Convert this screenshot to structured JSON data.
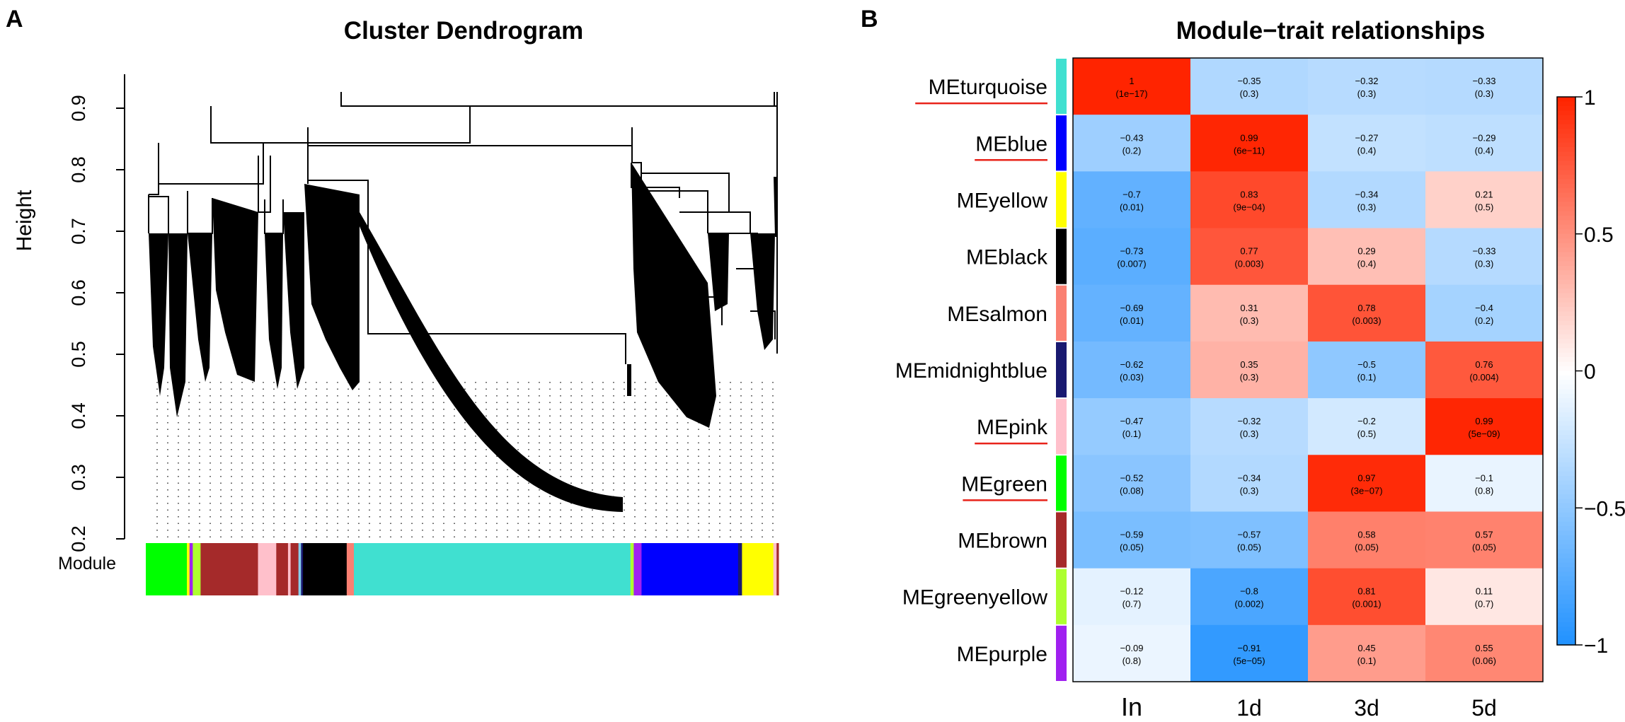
{
  "panel_a": {
    "letter": "A"
  },
  "panel_b": {
    "letter": "B"
  },
  "chart_data": [
    {
      "type": "dendrogram",
      "title": "Cluster Dendrogram",
      "ylabel": "Height",
      "ylim": [
        0.2,
        0.95
      ],
      "yticks": [
        0.2,
        0.3,
        0.4,
        0.5,
        0.6,
        0.7,
        0.8,
        0.9
      ],
      "ytick_labels": [
        "0.2",
        "0.3",
        "0.4",
        "0.5",
        "0.6",
        "0.7",
        "0.8",
        "0.9"
      ],
      "module_label": "Module",
      "module_colors": [
        {
          "color": "#00ff00",
          "fraction": 0.063
        },
        {
          "color": "#ffff00",
          "fraction": 0.004
        },
        {
          "color": "#a020f0",
          "fraction": 0.005
        },
        {
          "color": "#adff2f",
          "fraction": 0.012
        },
        {
          "color": "#a52a2a",
          "fraction": 0.088
        },
        {
          "color": "#ffc0cb",
          "fraction": 0.028
        },
        {
          "color": "#a52a2a",
          "fraction": 0.018
        },
        {
          "color": "#ffc0cb",
          "fraction": 0.004
        },
        {
          "color": "#a52a2a",
          "fraction": 0.012
        },
        {
          "color": "#87ceeb",
          "fraction": 0.004
        },
        {
          "color": "#191970",
          "fraction": 0.003
        },
        {
          "color": "#000000",
          "fraction": 0.067
        },
        {
          "color": "#fa8072",
          "fraction": 0.011
        },
        {
          "color": "#40e0d0",
          "fraction": 0.424
        },
        {
          "color": "#adff2f",
          "fraction": 0.005
        },
        {
          "color": "#a020f0",
          "fraction": 0.012
        },
        {
          "color": "#0000ff",
          "fraction": 0.148
        },
        {
          "color": "#191970",
          "fraction": 0.006
        },
        {
          "color": "#ffff00",
          "fraction": 0.048
        },
        {
          "color": "#ffc0cb",
          "fraction": 0.005
        },
        {
          "color": "#a52a2a",
          "fraction": 0.003
        }
      ]
    },
    {
      "type": "heatmap",
      "title": "Module−trait relationships",
      "rows": [
        "MEturquoise",
        "MEblue",
        "MEyellow",
        "MEblack",
        "MEsalmon",
        "MEmidnightblue",
        "MEpink",
        "MEgreen",
        "MEbrown",
        "MEgreenyellow",
        "MEpurple"
      ],
      "row_colors": [
        "#40e0d0",
        "#0000ff",
        "#ffff00",
        "#000000",
        "#fa8072",
        "#191970",
        "#ffc0cb",
        "#00ff00",
        "#a52a2a",
        "#adff2f",
        "#a020f0"
      ],
      "underlined_rows": [
        "MEturquoise",
        "MEblue",
        "MEpink",
        "MEgreen"
      ],
      "columns": [
        "In",
        "1d",
        "3d",
        "5d"
      ],
      "values": [
        [
          1,
          -0.35,
          -0.32,
          -0.33
        ],
        [
          -0.43,
          0.99,
          -0.27,
          -0.29
        ],
        [
          -0.7,
          0.83,
          -0.34,
          0.21
        ],
        [
          -0.73,
          0.77,
          0.29,
          -0.33
        ],
        [
          -0.69,
          0.31,
          0.78,
          -0.4
        ],
        [
          -0.62,
          0.35,
          -0.5,
          0.76
        ],
        [
          -0.47,
          -0.32,
          -0.2,
          0.99
        ],
        [
          -0.52,
          -0.34,
          0.97,
          -0.1
        ],
        [
          -0.59,
          -0.57,
          0.58,
          0.57
        ],
        [
          -0.12,
          -0.8,
          0.81,
          0.11
        ],
        [
          -0.09,
          -0.91,
          0.45,
          0.55
        ]
      ],
      "cell_labels": [
        [
          "1",
          "−0.35",
          "−0.32",
          "−0.33"
        ],
        [
          "−0.43",
          "0.99",
          "−0.27",
          "−0.29"
        ],
        [
          "−0.7",
          "0.83",
          "−0.34",
          "0.21"
        ],
        [
          "−0.73",
          "0.77",
          "0.29",
          "−0.33"
        ],
        [
          "−0.69",
          "0.31",
          "0.78",
          "−0.4"
        ],
        [
          "−0.62",
          "0.35",
          "−0.5",
          "0.76"
        ],
        [
          "−0.47",
          "−0.32",
          "−0.2",
          "0.99"
        ],
        [
          "−0.52",
          "−0.34",
          "0.97",
          "−0.1"
        ],
        [
          "−0.59",
          "−0.57",
          "0.58",
          "0.57"
        ],
        [
          "−0.12",
          "−0.8",
          "0.81",
          "0.11"
        ],
        [
          "−0.09",
          "−0.91",
          "0.45",
          "0.55"
        ]
      ],
      "pvalues": [
        [
          "(1e−17)",
          "(0.3)",
          "(0.3)",
          "(0.3)"
        ],
        [
          "(0.2)",
          "(6e−11)",
          "(0.4)",
          "(0.4)"
        ],
        [
          "(0.01)",
          "(9e−04)",
          "(0.3)",
          "(0.5)"
        ],
        [
          "(0.007)",
          "(0.003)",
          "(0.4)",
          "(0.3)"
        ],
        [
          "(0.01)",
          "(0.3)",
          "(0.003)",
          "(0.2)"
        ],
        [
          "(0.03)",
          "(0.3)",
          "(0.1)",
          "(0.004)"
        ],
        [
          "(0.1)",
          "(0.3)",
          "(0.5)",
          "(5e−09)"
        ],
        [
          "(0.08)",
          "(0.3)",
          "(3e−07)",
          "(0.8)"
        ],
        [
          "(0.05)",
          "(0.05)",
          "(0.05)",
          "(0.05)"
        ],
        [
          "(0.7)",
          "(0.002)",
          "(0.001)",
          "(0.7)"
        ],
        [
          "(0.8)",
          "(5e−05)",
          "(0.1)",
          "(0.06)"
        ]
      ],
      "colorscale": {
        "min": -1,
        "max": 1,
        "low_color": "#1e90ff",
        "mid_color": "#ffffff",
        "high_color": "#ff2400",
        "ticks": [
          1,
          0.5,
          0,
          -0.5,
          -1
        ],
        "tick_labels": [
          "1",
          "0.5",
          "0",
          "−0.5",
          "−1"
        ]
      },
      "underline_color": "#e8231a"
    }
  ]
}
